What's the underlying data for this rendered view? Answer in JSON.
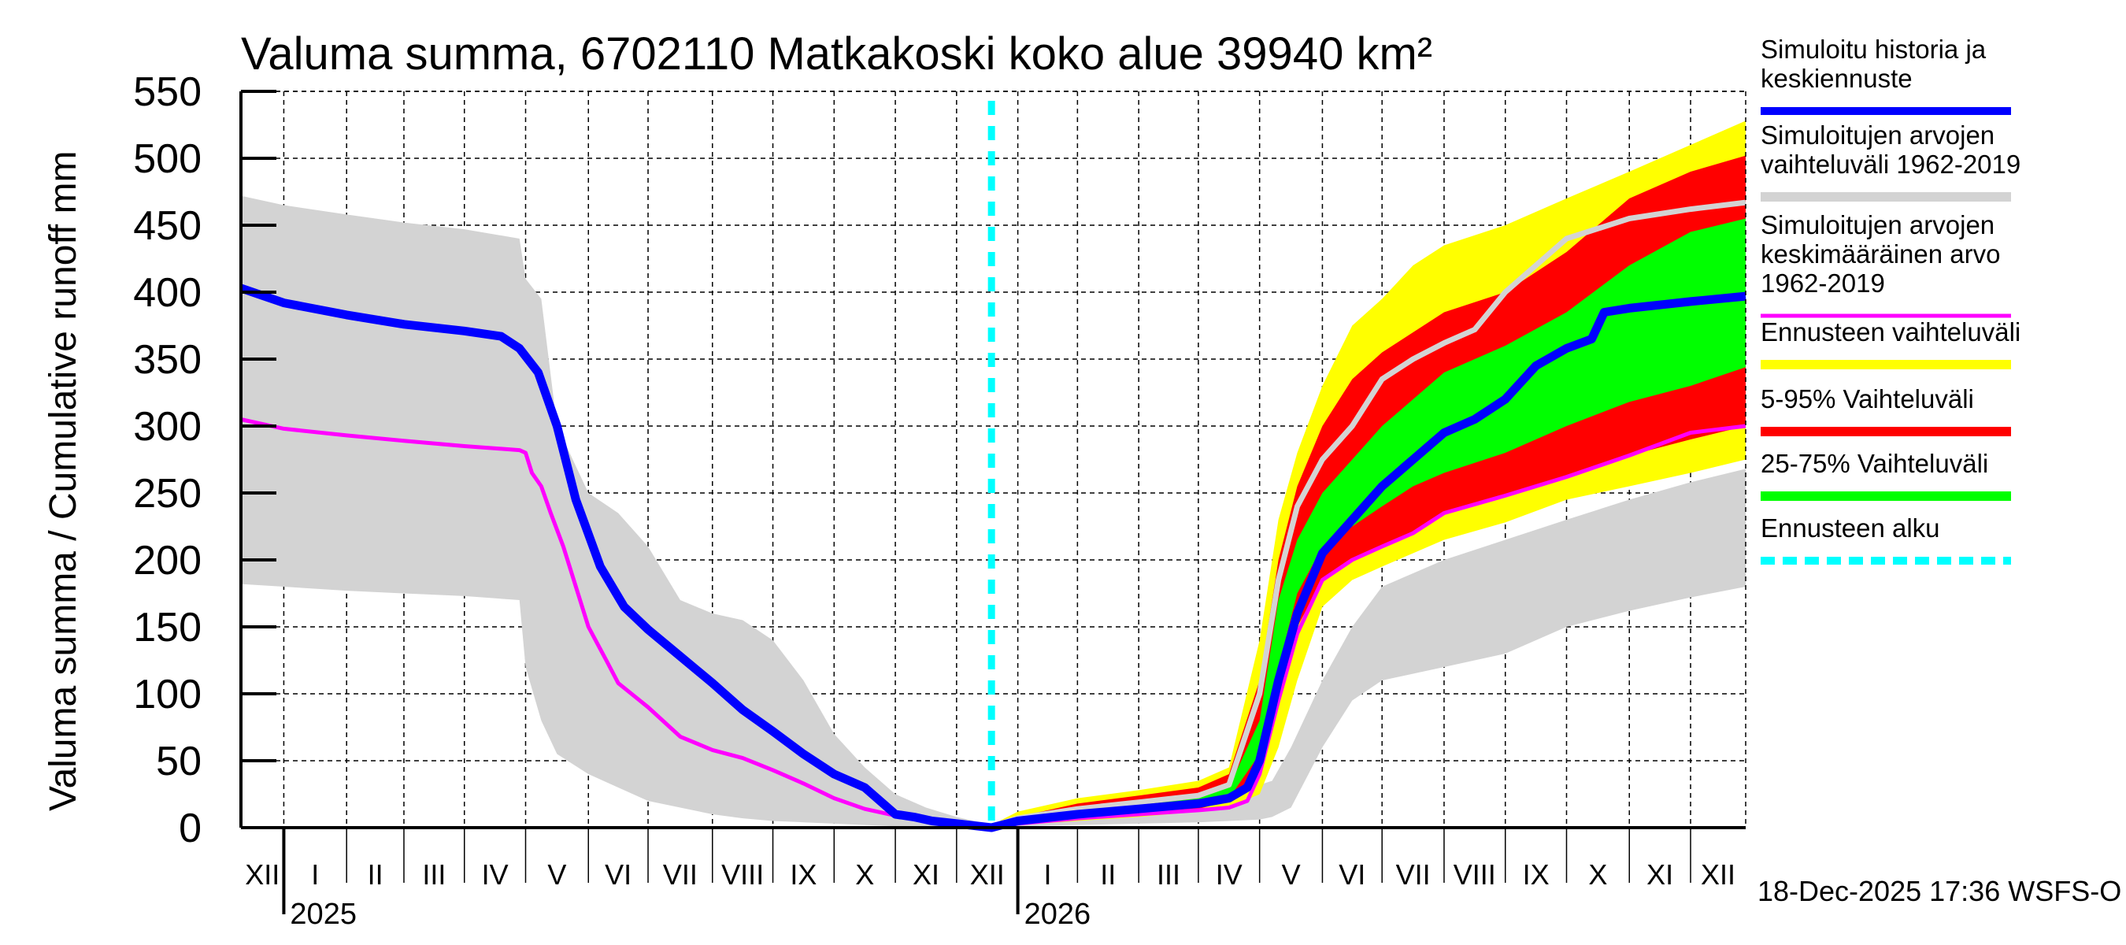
{
  "chart_data": {
    "type": "area",
    "title": "Valuma summa, 6702110 Matkakoski koko alue 39940 km²",
    "ylabel": "Valuma summa / Cumulative runoff    mm",
    "xlabel": "",
    "ylim": [
      0,
      550
    ],
    "yticks": [
      0,
      50,
      100,
      150,
      200,
      250,
      300,
      350,
      400,
      450,
      500,
      550
    ],
    "grid": true,
    "x_unit": "months since start of December 2024",
    "xlim": [
      0.3,
      24.9
    ],
    "month_labels": [
      "XII",
      "I",
      "II",
      "III",
      "IV",
      "V",
      "VI",
      "VII",
      "VIII",
      "IX",
      "X",
      "XI",
      "XII",
      "I",
      "II",
      "III",
      "IV",
      "V",
      "VI",
      "VII",
      "VIII",
      "IX",
      "X",
      "XI",
      "XII"
    ],
    "year_labels": [
      {
        "label": "2025",
        "at_month": 1
      },
      {
        "label": "2026",
        "at_month": 13
      }
    ],
    "forecast_start": 12.57,
    "timestamp": "18-Dec-2025 17:36 WSFS-O",
    "legend_position": "right",
    "legend": [
      {
        "label_lines": [
          "Simuloitu historia ja",
          "keskiennuste"
        ],
        "color": "#0000ff",
        "style": "thick-line"
      },
      {
        "label_lines": [
          "Simuloitujen arvojen",
          "vaihteluväli 1962-2019"
        ],
        "color": "#d3d3d3",
        "style": "band"
      },
      {
        "label_lines": [
          "Simuloitujen arvojen",
          "keskimääräinen arvo",
          "   1962-2019"
        ],
        "color": "#ff00ff",
        "style": "line"
      },
      {
        "label_lines": [
          "Ennusteen vaihteluväli"
        ],
        "color": "#ffff00",
        "style": "band"
      },
      {
        "label_lines": [
          "5-95% Vaihteluväli"
        ],
        "color": "#ff0000",
        "style": "band"
      },
      {
        "label_lines": [
          "25-75% Vaihteluväli"
        ],
        "color": "#00ff00",
        "style": "band"
      },
      {
        "label_lines": [
          "Ennusteen alku"
        ],
        "color": "#00ffff",
        "style": "dotted-line"
      }
    ],
    "series": [
      {
        "name": "Simuloitujen arvojen vaihteluväli 1962-2019",
        "kind": "band",
        "color": "#d3d3d3",
        "x": [
          0.3,
          1,
          2,
          3,
          4,
          4.9,
          5.0,
          5.25,
          5.5,
          6,
          6.5,
          7,
          7.5,
          8,
          8.5,
          9,
          9.5,
          10,
          10.5,
          11,
          11.5,
          12,
          12.57,
          13,
          14,
          15,
          16,
          16.5,
          17,
          17.2,
          17.5,
          18,
          18.5,
          19,
          20,
          21,
          22,
          23,
          24,
          24.9
        ],
        "upper": [
          472,
          465,
          458,
          452,
          447,
          440,
          410,
          395,
          300,
          250,
          235,
          210,
          170,
          160,
          155,
          140,
          110,
          70,
          45,
          25,
          15,
          8,
          2,
          10,
          18,
          22,
          26,
          30,
          32,
          35,
          60,
          110,
          150,
          180,
          200,
          215,
          230,
          245,
          258,
          268
        ],
        "lower": [
          182,
          180,
          177,
          175,
          173,
          170,
          120,
          80,
          55,
          40,
          30,
          20,
          15,
          10,
          7,
          5,
          4,
          3,
          2,
          1,
          1,
          0,
          0,
          1,
          2,
          3,
          4,
          5,
          6,
          8,
          15,
          60,
          95,
          110,
          120,
          130,
          150,
          162,
          172,
          180
        ]
      },
      {
        "name": "Ennusteen vaihteluväli",
        "kind": "band",
        "color": "#ffff00",
        "x": [
          12.57,
          13,
          14,
          15,
          16,
          16.5,
          17,
          17.3,
          17.6,
          18,
          18.5,
          19,
          19.5,
          20,
          21,
          22,
          23,
          24,
          24.9
        ],
        "upper": [
          2,
          12,
          22,
          28,
          35,
          45,
          140,
          230,
          280,
          330,
          375,
          395,
          420,
          435,
          450,
          470,
          490,
          510,
          528
        ],
        "lower": [
          0,
          2,
          5,
          8,
          12,
          15,
          25,
          60,
          110,
          165,
          185,
          195,
          205,
          215,
          228,
          245,
          255,
          265,
          275
        ]
      },
      {
        "name": "5-95% Vaihteluväli",
        "kind": "band",
        "color": "#ff0000",
        "x": [
          12.57,
          13,
          14,
          15,
          16,
          16.5,
          17,
          17.3,
          17.6,
          18,
          18.5,
          19,
          19.5,
          20,
          21,
          22,
          23,
          24,
          24.9
        ],
        "upper": [
          1,
          8,
          18,
          24,
          30,
          40,
          110,
          200,
          255,
          300,
          335,
          355,
          370,
          385,
          400,
          430,
          470,
          490,
          502
        ],
        "lower": [
          0,
          3,
          7,
          10,
          14,
          20,
          40,
          90,
          150,
          185,
          200,
          210,
          220,
          235,
          248,
          262,
          278,
          290,
          300
        ]
      },
      {
        "name": "25-75% Vaihteluväli",
        "kind": "band",
        "color": "#00ff00",
        "x": [
          12.57,
          13,
          14,
          15,
          16,
          16.5,
          17,
          17.3,
          17.6,
          18,
          18.5,
          19,
          19.5,
          20,
          21,
          22,
          23,
          24,
          24.9
        ],
        "upper": [
          1,
          6,
          12,
          17,
          22,
          30,
          80,
          170,
          215,
          250,
          275,
          300,
          320,
          340,
          360,
          385,
          420,
          445,
          455
        ],
        "lower": [
          0,
          4,
          9,
          13,
          17,
          22,
          55,
          120,
          175,
          210,
          225,
          240,
          255,
          265,
          280,
          300,
          318,
          330,
          344
        ]
      },
      {
        "name": "Simuloitujen arvojen keskimääräinen arvo 1962-2019",
        "kind": "line",
        "color": "#ff00ff",
        "x": [
          0.3,
          1,
          2,
          3,
          4,
          4.9,
          5.0,
          5.1,
          5.25,
          5.4,
          5.6,
          6,
          6.3,
          6.5,
          7,
          7.5,
          8,
          8.5,
          9,
          9.5,
          10,
          10.5,
          11,
          11.5,
          12,
          12.57,
          13,
          14,
          15,
          16,
          16.5,
          16.8,
          17,
          17.3,
          17.6,
          18,
          18.5,
          19,
          19.5,
          20,
          21,
          22,
          23,
          24,
          24.9
        ],
        "y": [
          305,
          298,
          293,
          289,
          285,
          282,
          280,
          265,
          255,
          235,
          210,
          150,
          125,
          108,
          90,
          68,
          58,
          52,
          43,
          33,
          22,
          14,
          9,
          5,
          3,
          0,
          3,
          7,
          10,
          13,
          15,
          20,
          40,
          95,
          145,
          185,
          200,
          210,
          220,
          235,
          248,
          262,
          278,
          295,
          300
        ]
      },
      {
        "name": "Simuloitujen arvojen keskimääräinen arvo (forecast period, light grey)",
        "kind": "line",
        "color": "#d3d3d3",
        "x": [
          12.57,
          13,
          14,
          15,
          16,
          16.5,
          17,
          17.3,
          17.6,
          18,
          18.5,
          19,
          19.5,
          20,
          20.5,
          21,
          21.5,
          22,
          23,
          24,
          24.9
        ],
        "y": [
          1,
          7,
          14,
          19,
          24,
          32,
          100,
          185,
          240,
          275,
          300,
          335,
          350,
          362,
          372,
          400,
          420,
          440,
          455,
          462,
          467
        ]
      },
      {
        "name": "Simuloitu historia ja keskiennuste",
        "kind": "line",
        "color": "#0000ff",
        "x": [
          0.3,
          1,
          2,
          3,
          4,
          4.6,
          4.9,
          5.2,
          5.5,
          5.8,
          6.2,
          6.6,
          7,
          7.5,
          8,
          8.5,
          9,
          9.5,
          10,
          10.5,
          11,
          11.3,
          11.6,
          12,
          12.57,
          13,
          14,
          15,
          16,
          16.5,
          16.8,
          17,
          17.3,
          17.6,
          18,
          18.5,
          19,
          19.5,
          20,
          20.5,
          21,
          21.5,
          22,
          22.4,
          22.6,
          23,
          24,
          24.9
        ],
        "y": [
          403,
          392,
          383,
          376,
          371,
          367,
          358,
          340,
          300,
          245,
          195,
          165,
          148,
          128,
          108,
          88,
          72,
          55,
          40,
          30,
          10,
          8,
          5,
          3,
          0,
          5,
          10,
          14,
          18,
          22,
          30,
          50,
          110,
          160,
          205,
          230,
          255,
          275,
          295,
          305,
          320,
          345,
          358,
          365,
          385,
          388,
          393,
          397
        ]
      }
    ]
  }
}
